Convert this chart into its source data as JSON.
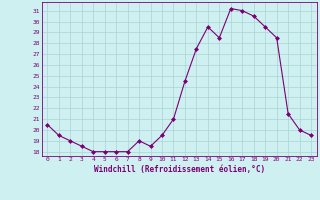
{
  "x": [
    0,
    1,
    2,
    3,
    4,
    5,
    6,
    7,
    8,
    9,
    10,
    11,
    12,
    13,
    14,
    15,
    16,
    17,
    18,
    19,
    20,
    21,
    22,
    23
  ],
  "y": [
    20.5,
    19.5,
    19.0,
    18.5,
    18.0,
    18.0,
    18.0,
    18.0,
    19.0,
    18.5,
    19.5,
    21.0,
    24.5,
    27.5,
    29.5,
    28.5,
    31.2,
    31.0,
    30.5,
    29.5,
    28.5,
    21.5,
    20.0,
    19.5
  ],
  "line_color": "#7b0075",
  "marker": "D",
  "marker_size": 2.0,
  "bg_color": "#cff0f0",
  "grid_color": "#aad4d4",
  "xlabel": "Windchill (Refroidissement éolien,°C)",
  "ylabel_ticks": [
    18,
    19,
    20,
    21,
    22,
    23,
    24,
    25,
    26,
    27,
    28,
    29,
    30,
    31
  ],
  "ylim": [
    17.6,
    31.8
  ],
  "xlim": [
    -0.5,
    23.5
  ],
  "line_width": 0.8
}
